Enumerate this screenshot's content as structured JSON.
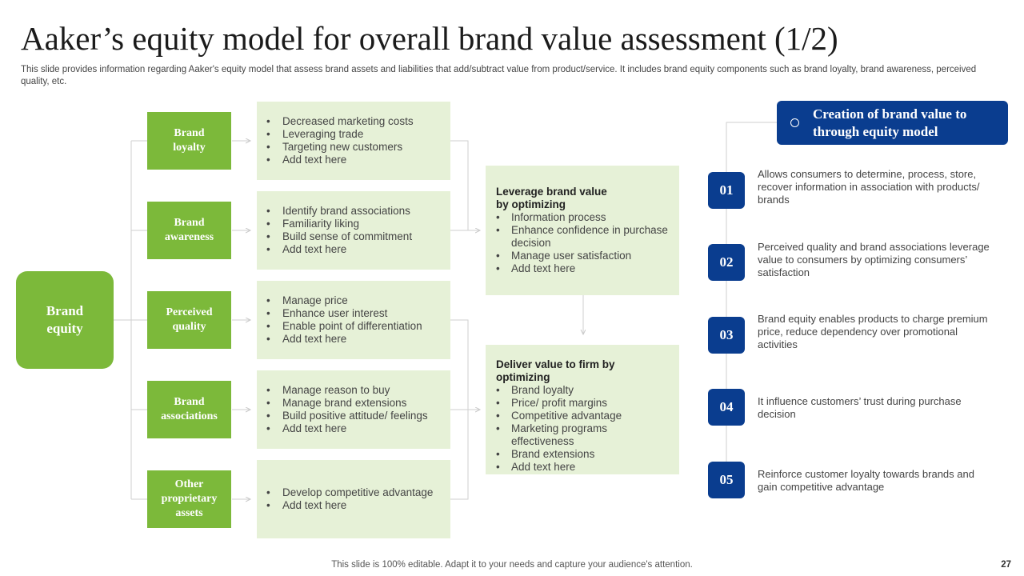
{
  "title": "Aaker’s equity model for overall brand value assessment (1/2)",
  "subtitle": "This slide provides information regarding Aaker's equity model that assess brand assets and liabilities that add/subtract value from product/service. It includes brand equity components such as brand loyalty, brand awareness, perceived quality, etc.",
  "center": {
    "label_line1": "Brand",
    "label_line2": "equity"
  },
  "components": [
    {
      "lines": [
        "Brand",
        "loyalty"
      ],
      "bullets": [
        "Decreased marketing costs",
        "Leveraging trade",
        "Targeting new customers",
        "Add text here"
      ]
    },
    {
      "lines": [
        "Brand",
        "awareness"
      ],
      "bullets": [
        "Identify brand associations",
        "Familiarity liking",
        "Build sense of commitment",
        "Add text here"
      ]
    },
    {
      "lines": [
        "Perceived",
        "quality"
      ],
      "bullets": [
        "Manage price",
        "Enhance user interest",
        "Enable point of differentiation",
        "Add text here"
      ]
    },
    {
      "lines": [
        "Brand",
        "associations"
      ],
      "bullets": [
        "Manage reason to buy",
        "Manage brand extensions",
        "Build positive attitude/ feelings",
        "Add text here"
      ]
    },
    {
      "lines": [
        "Other",
        "proprietary",
        "assets"
      ],
      "bullets": [
        "Develop competitive advantage",
        "Add text here"
      ]
    }
  ],
  "leverage": {
    "title_line1": "Leverage brand value",
    "title_line2": "by optimizing",
    "bullets": [
      "Information process",
      "Enhance confidence in purchase decision",
      "Manage user satisfaction",
      "Add text here"
    ]
  },
  "deliver": {
    "title": "Deliver value to firm by optimizing",
    "bullets": [
      "Brand loyalty",
      "Price/ profit margins",
      "Competitive advantage",
      "Marketing programs effectiveness",
      "Brand extensions",
      "Add text here"
    ]
  },
  "creation": {
    "line1": "Creation of brand value to",
    "line2": "through equity model"
  },
  "points": [
    {
      "num": "01",
      "text": "Allows consumers to determine, process, store, recover information in association with products/ brands"
    },
    {
      "num": "02",
      "text": "Perceived quality and brand associations leverage value to consumers by optimizing consumers’ satisfaction"
    },
    {
      "num": "03",
      "text": "Brand equity enables products to charge premium price, reduce dependency over promotional activities"
    },
    {
      "num": "04",
      "text": "It influence customers’ trust during purchase decision"
    },
    {
      "num": "05",
      "text": "Reinforce customer loyalty towards brands and gain competitive advantage"
    }
  ],
  "footer": "This slide is 100% editable. Adapt it to your needs and capture your audience's attention.",
  "page_number": "27",
  "colors": {
    "green": "#7cb93a",
    "light_green": "#e6f1d7",
    "navy": "#0a3d8f"
  }
}
